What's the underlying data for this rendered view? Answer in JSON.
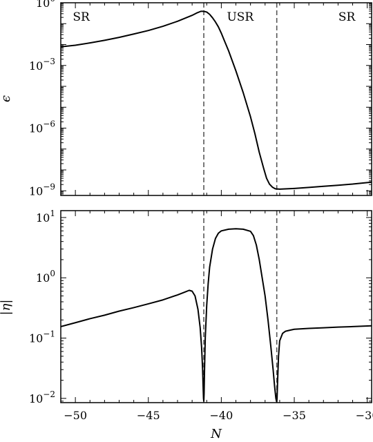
{
  "chart_data": [
    {
      "type": "line",
      "ylabel": "ϵ",
      "yscale": "log",
      "ylim": [
        6e-10,
        1.0
      ],
      "xlim": [
        -51,
        -29.7
      ],
      "ytick_values": [
        1e-09,
        1e-06,
        0.001,
        1
      ],
      "ytick_labels": [
        {
          "base": "10",
          "exp": "−9"
        },
        {
          "base": "10",
          "exp": "−6"
        },
        {
          "base": "10",
          "exp": "−3"
        },
        {
          "base": "10",
          "exp": "0"
        }
      ],
      "region_labels": [
        {
          "text": "SR",
          "x": -49.6
        },
        {
          "text": "USR",
          "x": -38.7
        },
        {
          "text": "SR",
          "x": -31.4
        }
      ],
      "vlines": [
        -41.2,
        -36.2
      ],
      "series": [
        {
          "x": [
            -51,
            -50,
            -49,
            -48,
            -47,
            -46,
            -45,
            -44,
            -43,
            -42,
            -41.7,
            -41.4,
            -41.2,
            -41.0,
            -40.8,
            -40.6,
            -40.4,
            -40.2,
            -40.0,
            -39.8,
            -39.5,
            -39.0,
            -38.5,
            -38.0,
            -37.7,
            -37.4,
            -37.1,
            -36.9,
            -36.7,
            -36.5,
            -36.3,
            -36.0,
            -35.0,
            -34.0,
            -33.0,
            -32.0,
            -31.0,
            -29.7
          ],
          "y": [
            0.0078,
            0.0093,
            0.012,
            0.016,
            0.022,
            0.032,
            0.047,
            0.075,
            0.13,
            0.25,
            0.32,
            0.39,
            0.39,
            0.36,
            0.28,
            0.19,
            0.12,
            0.07,
            0.035,
            0.016,
            0.005,
            0.00055,
            5e-05,
            3.5e-06,
            5.5e-07,
            7e-08,
            1.2e-08,
            4e-09,
            2.1e-09,
            1.5e-09,
            1.25e-09,
            1.2e-09,
            1.3e-09,
            1.45e-09,
            1.65e-09,
            1.85e-09,
            2.1e-09,
            2.6e-09
          ]
        }
      ]
    },
    {
      "type": "line",
      "xlabel": "N",
      "ylabel": "|η|",
      "yscale": "log",
      "ylim": [
        0.0085,
        13
      ],
      "xlim": [
        -51,
        -29.7
      ],
      "xticks": [
        -50,
        -45,
        -40,
        -35,
        -30
      ],
      "xtick_labels": [
        "−50",
        "−45",
        "−40",
        "−35",
        "−30"
      ],
      "ytick_values": [
        0.01,
        0.1,
        1,
        10
      ],
      "ytick_labels": [
        {
          "base": "10",
          "exp": "−2"
        },
        {
          "base": "10",
          "exp": "−1"
        },
        {
          "base": "10",
          "exp": "0"
        },
        {
          "base": "10",
          "exp": "1"
        }
      ],
      "vlines": [
        -41.2,
        -36.2
      ],
      "series": [
        {
          "x": [
            -51,
            -50,
            -49,
            -48,
            -47,
            -46,
            -45,
            -44,
            -43,
            -42.5,
            -42.2,
            -42.0,
            -41.8,
            -41.6,
            -41.45,
            -41.35,
            -41.28,
            -41.24,
            -41.22,
            -41.2,
            -41.18,
            -41.15,
            -41.1,
            -41.0,
            -40.9,
            -40.8,
            -40.6,
            -40.4,
            -40.2,
            -40.0,
            -39.5,
            -39.0,
            -38.5,
            -38.0,
            -37.8,
            -37.6,
            -37.4,
            -37.2,
            -37.0,
            -36.8,
            -36.6,
            -36.45,
            -36.35,
            -36.26,
            -36.22,
            -36.2,
            -36.18,
            -36.14,
            -36.08,
            -36.0,
            -35.8,
            -35.6,
            -35.3,
            -35.0,
            -34.0,
            -33.0,
            -32.0,
            -31.0,
            -29.7
          ],
          "y": [
            0.155,
            0.18,
            0.21,
            0.24,
            0.28,
            0.32,
            0.37,
            0.43,
            0.52,
            0.58,
            0.62,
            0.6,
            0.5,
            0.3,
            0.15,
            0.07,
            0.03,
            0.014,
            0.01,
            0.009,
            0.012,
            0.03,
            0.1,
            0.35,
            0.8,
            1.5,
            3.0,
            4.5,
            5.5,
            6.0,
            6.4,
            6.5,
            6.4,
            5.9,
            5.0,
            3.5,
            2.0,
            1.0,
            0.5,
            0.2,
            0.07,
            0.03,
            0.016,
            0.01,
            0.009,
            0.0088,
            0.01,
            0.02,
            0.05,
            0.09,
            0.12,
            0.13,
            0.135,
            0.14,
            0.145,
            0.148,
            0.152,
            0.155,
            0.16
          ]
        }
      ]
    }
  ]
}
